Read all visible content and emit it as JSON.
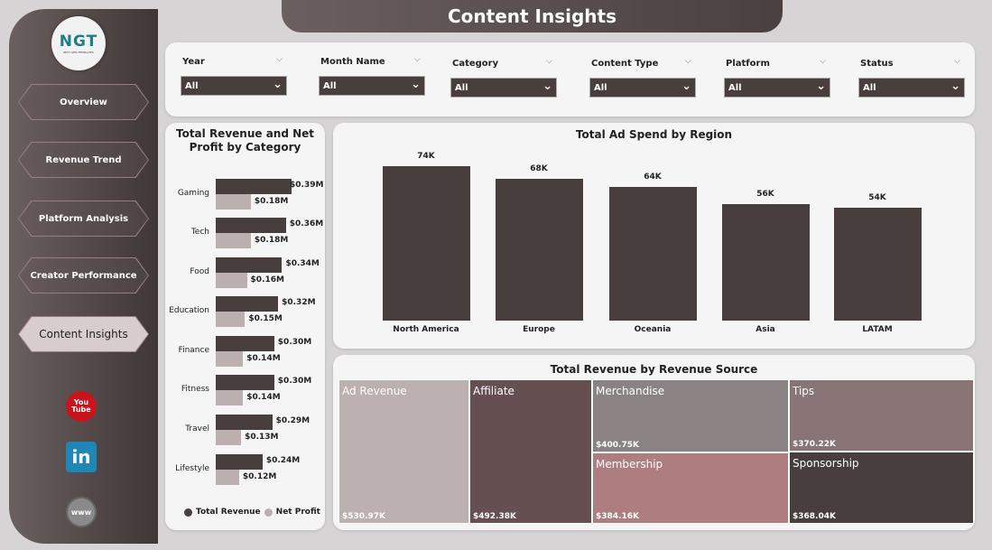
{
  "header": {
    "title": "Content Insights"
  },
  "logo": {
    "text": "NGT",
    "subtitle": "NEXT GEN TEMPLATES"
  },
  "sidebar": {
    "items": [
      {
        "label": "Overview"
      },
      {
        "label": "Revenue Trend"
      },
      {
        "label": "Platform Analysis"
      },
      {
        "label": "Creator Performance"
      },
      {
        "label": "Content Insights",
        "active": true
      }
    ],
    "social": [
      {
        "icon": "youtube-icon",
        "label": "You Tube"
      },
      {
        "icon": "linkedin-icon",
        "label": "in"
      },
      {
        "icon": "globe-icon",
        "label": "www"
      }
    ]
  },
  "filters": [
    {
      "label": "Year",
      "value": "All"
    },
    {
      "label": "Month Name",
      "value": "All"
    },
    {
      "label": "Category",
      "value": "All"
    },
    {
      "label": "Content Type",
      "value": "All"
    },
    {
      "label": "Platform",
      "value": "All"
    },
    {
      "label": "Status",
      "value": "All"
    }
  ],
  "colors": {
    "revenue": "#483e3e",
    "profit": "#bcafb0",
    "bar": "#483e3e"
  },
  "chart_data": [
    {
      "type": "bar",
      "orientation": "horizontal",
      "title": "Total Revenue and Net Profit by Category",
      "categories": [
        "Gaming",
        "Tech",
        "Food",
        "Education",
        "Finance",
        "Fitness",
        "Travel",
        "Lifestyle"
      ],
      "series": [
        {
          "name": "Total Revenue",
          "values": [
            0.39,
            0.36,
            0.34,
            0.32,
            0.3,
            0.3,
            0.29,
            0.24
          ],
          "labels": [
            "$0.39M",
            "$0.36M",
            "$0.34M",
            "$0.32M",
            "$0.30M",
            "$0.30M",
            "$0.29M",
            "$0.24M"
          ]
        },
        {
          "name": "Net Profit",
          "values": [
            0.18,
            0.18,
            0.16,
            0.15,
            0.14,
            0.14,
            0.13,
            0.12
          ],
          "labels": [
            "$0.18M",
            "$0.18M",
            "$0.16M",
            "$0.15M",
            "$0.14M",
            "$0.14M",
            "$0.13M",
            "$0.12M"
          ]
        }
      ],
      "legend": "bottom",
      "unit": "$M"
    },
    {
      "type": "bar",
      "title": "Total Ad Spend by Region",
      "categories": [
        "North America",
        "Europe",
        "Oceania",
        "Asia",
        "LATAM"
      ],
      "values": [
        74,
        68,
        64,
        56,
        54
      ],
      "labels": [
        "74K",
        "68K",
        "64K",
        "56K",
        "54K"
      ],
      "unit": "K",
      "ylim": [
        0,
        74
      ]
    },
    {
      "type": "treemap",
      "title": "Total Revenue by Revenue Source",
      "items": [
        {
          "name": "Ad Revenue",
          "value": 530.97,
          "label": "$530.97K",
          "color": "#bcb0b1"
        },
        {
          "name": "Affiliate",
          "value": 492.38,
          "label": "$492.38K",
          "color": "#654f50"
        },
        {
          "name": "Merchandise",
          "value": 400.75,
          "label": "$400.75K",
          "color": "#8b8283"
        },
        {
          "name": "Membership",
          "value": 384.16,
          "label": "$384.16K",
          "color": "#ae7d80"
        },
        {
          "name": "Tips",
          "value": 370.22,
          "label": "$370.22K",
          "color": "#897475"
        },
        {
          "name": "Sponsorship",
          "value": 368.04,
          "label": "$368.04K",
          "color": "#483e3e"
        }
      ]
    }
  ]
}
